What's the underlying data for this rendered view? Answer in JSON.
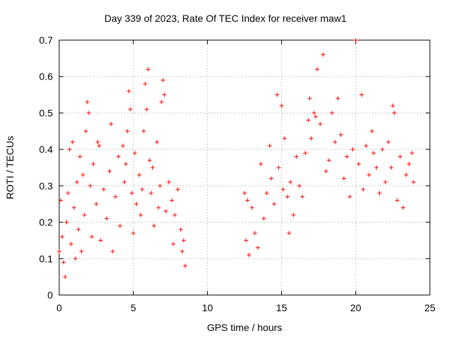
{
  "chart_data": {
    "type": "scatter",
    "title": "Day 339 of 2023, Rate Of TEC Index for receiver maw1",
    "xlabel": "GPS time / hours",
    "ylabel": "ROTI / TECUs",
    "xlim": [
      0,
      25
    ],
    "ylim": [
      0,
      0.7
    ],
    "xticks": [
      "0",
      "5",
      "10",
      "15",
      "20",
      "25"
    ],
    "yticks": [
      "0",
      "0.1",
      "0.2",
      "0.3",
      "0.4",
      "0.5",
      "0.6",
      "0.7"
    ],
    "grid": true,
    "marker": "+",
    "color": "#ff0000",
    "series": [
      {
        "points": [
          [
            0.0,
            0.12
          ],
          [
            0.1,
            0.26
          ],
          [
            0.2,
            0.16
          ],
          [
            0.3,
            0.09
          ],
          [
            0.4,
            0.05
          ],
          [
            0.5,
            0.2
          ],
          [
            0.6,
            0.28
          ],
          [
            0.7,
            0.4
          ],
          [
            0.8,
            0.14
          ],
          [
            0.9,
            0.42
          ],
          [
            1.0,
            0.24
          ],
          [
            1.1,
            0.1
          ],
          [
            1.2,
            0.31
          ],
          [
            1.3,
            0.18
          ],
          [
            1.4,
            0.38
          ],
          [
            1.5,
            0.12
          ],
          [
            1.6,
            0.33
          ],
          [
            1.7,
            0.22
          ],
          [
            1.8,
            0.45
          ],
          [
            1.9,
            0.53
          ],
          [
            2.0,
            0.5
          ],
          [
            2.1,
            0.3
          ],
          [
            2.2,
            0.16
          ],
          [
            2.3,
            0.36
          ],
          [
            2.5,
            0.25
          ],
          [
            2.6,
            0.42
          ],
          [
            2.7,
            0.41
          ],
          [
            2.8,
            0.15
          ],
          [
            3.0,
            0.29
          ],
          [
            3.2,
            0.21
          ],
          [
            3.4,
            0.34
          ],
          [
            3.5,
            0.47
          ],
          [
            3.6,
            0.12
          ],
          [
            3.8,
            0.27
          ],
          [
            4.0,
            0.38
          ],
          [
            4.1,
            0.19
          ],
          [
            4.3,
            0.41
          ],
          [
            4.4,
            0.31
          ],
          [
            4.5,
            0.36
          ],
          [
            4.6,
            0.45
          ],
          [
            4.7,
            0.56
          ],
          [
            4.8,
            0.51
          ],
          [
            4.9,
            0.28
          ],
          [
            5.0,
            0.17
          ],
          [
            5.1,
            0.39
          ],
          [
            5.2,
            0.25
          ],
          [
            5.4,
            0.33
          ],
          [
            5.5,
            0.22
          ],
          [
            5.6,
            0.29
          ],
          [
            5.7,
            0.45
          ],
          [
            5.8,
            0.58
          ],
          [
            5.9,
            0.51
          ],
          [
            6.0,
            0.62
          ],
          [
            6.1,
            0.37
          ],
          [
            6.2,
            0.28
          ],
          [
            6.3,
            0.35
          ],
          [
            6.4,
            0.19
          ],
          [
            6.6,
            0.42
          ],
          [
            6.7,
            0.24
          ],
          [
            6.8,
            0.3
          ],
          [
            6.9,
            0.53
          ],
          [
            7.0,
            0.59
          ],
          [
            7.1,
            0.55
          ],
          [
            7.2,
            0.23
          ],
          [
            7.4,
            0.31
          ],
          [
            7.6,
            0.26
          ],
          [
            7.7,
            0.14
          ],
          [
            7.8,
            0.22
          ],
          [
            8.0,
            0.29
          ],
          [
            8.2,
            0.18
          ],
          [
            8.3,
            0.12
          ],
          [
            8.4,
            0.15
          ],
          [
            8.5,
            0.08
          ],
          [
            12.5,
            0.28
          ],
          [
            12.6,
            0.15
          ],
          [
            12.7,
            0.26
          ],
          [
            12.8,
            0.11
          ],
          [
            13.0,
            0.24
          ],
          [
            13.2,
            0.17
          ],
          [
            13.4,
            0.13
          ],
          [
            13.6,
            0.36
          ],
          [
            13.8,
            0.21
          ],
          [
            14.0,
            0.28
          ],
          [
            14.2,
            0.41
          ],
          [
            14.3,
            0.32
          ],
          [
            14.5,
            0.25
          ],
          [
            14.7,
            0.55
          ],
          [
            14.8,
            0.35
          ],
          [
            15.0,
            0.52
          ],
          [
            15.1,
            0.29
          ],
          [
            15.2,
            0.43
          ],
          [
            15.4,
            0.27
          ],
          [
            15.5,
            0.17
          ],
          [
            15.6,
            0.31
          ],
          [
            15.8,
            0.22
          ],
          [
            16.0,
            0.38
          ],
          [
            16.2,
            0.3
          ],
          [
            16.4,
            0.27
          ],
          [
            16.6,
            0.39
          ],
          [
            16.8,
            0.48
          ],
          [
            16.9,
            0.54
          ],
          [
            17.0,
            0.43
          ],
          [
            17.2,
            0.5
          ],
          [
            17.3,
            0.49
          ],
          [
            17.4,
            0.62
          ],
          [
            17.6,
            0.47
          ],
          [
            17.8,
            0.66
          ],
          [
            18.0,
            0.34
          ],
          [
            18.2,
            0.37
          ],
          [
            18.4,
            0.5
          ],
          [
            18.6,
            0.42
          ],
          [
            18.8,
            0.54
          ],
          [
            19.0,
            0.44
          ],
          [
            19.2,
            0.32
          ],
          [
            19.4,
            0.38
          ],
          [
            19.6,
            0.27
          ],
          [
            19.8,
            0.4
          ],
          [
            20.0,
            0.7
          ],
          [
            20.2,
            0.36
          ],
          [
            20.4,
            0.55
          ],
          [
            20.5,
            0.29
          ],
          [
            20.7,
            0.41
          ],
          [
            20.9,
            0.33
          ],
          [
            21.1,
            0.45
          ],
          [
            21.2,
            0.39
          ],
          [
            21.4,
            0.35
          ],
          [
            21.6,
            0.28
          ],
          [
            21.8,
            0.4
          ],
          [
            22.0,
            0.31
          ],
          [
            22.2,
            0.42
          ],
          [
            22.4,
            0.35
          ],
          [
            22.5,
            0.52
          ],
          [
            22.6,
            0.5
          ],
          [
            22.8,
            0.26
          ],
          [
            23.0,
            0.38
          ],
          [
            23.2,
            0.24
          ],
          [
            23.4,
            0.33
          ],
          [
            23.6,
            0.36
          ],
          [
            23.8,
            0.39
          ],
          [
            23.9,
            0.31
          ]
        ]
      }
    ]
  }
}
